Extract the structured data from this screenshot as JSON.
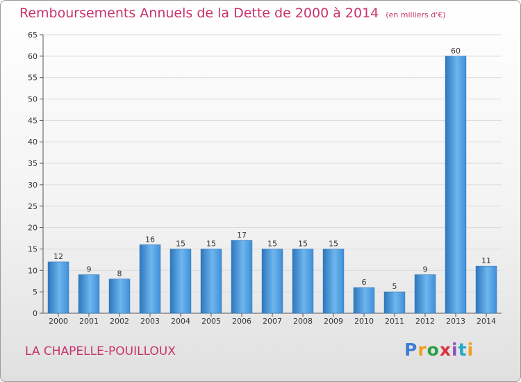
{
  "chart_data": {
    "type": "bar",
    "title": "Remboursements Annuels de la Dette de 2000 à 2014",
    "unit": "(en milliers d'€)",
    "xlabel": "",
    "ylabel": "",
    "categories": [
      "2000",
      "2001",
      "2002",
      "2003",
      "2004",
      "2005",
      "2006",
      "2007",
      "2008",
      "2009",
      "2010",
      "2011",
      "2012",
      "2013",
      "2014"
    ],
    "values": [
      12,
      9,
      8,
      16,
      15,
      15,
      17,
      15,
      15,
      15,
      6,
      5,
      9,
      60,
      11
    ],
    "ylim": [
      0,
      65
    ],
    "yticks": [
      0,
      5,
      10,
      15,
      20,
      25,
      30,
      35,
      40,
      45,
      50,
      55,
      60,
      65
    ],
    "grid": true,
    "legend": "none",
    "bar_color": "#3f8fd8",
    "bar_color_light": "#6eb6ee",
    "bar_color_dark": "#2c76bd"
  },
  "commune": "LA CHAPELLE-POUILLOUX",
  "logo": {
    "letters": [
      "P",
      "r",
      "o",
      "x",
      "i",
      "t",
      "i"
    ],
    "colors": [
      "#3d7fd4",
      "#f0a020",
      "#2e9e44",
      "#d8323c",
      "#8c4fc0",
      "#20a8c8",
      "#f0a020"
    ]
  }
}
